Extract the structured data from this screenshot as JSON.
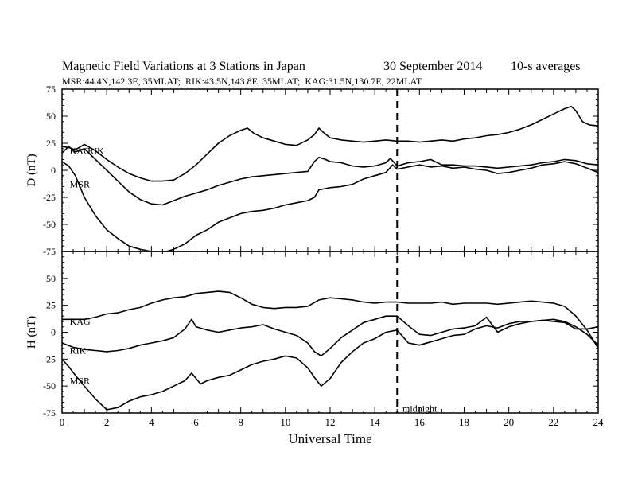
{
  "header": {
    "title": "Magnetic Field Variations at 3 Stations in Japan",
    "date": "30 September 2014",
    "averaging": "10-s averages",
    "stations_line": "MSR:44.4N,142.3E, 35MLAT;  RIK:43.5N,143.8E, 35MLAT;  KAG:31.5N,130.7E, 22MLAT"
  },
  "chart_data": [
    {
      "type": "line",
      "panel": "top",
      "ylabel": "D (nT)",
      "xlabel": "",
      "xlim": [
        0,
        24
      ],
      "ylim": [
        -75,
        75
      ],
      "yticks": [
        75,
        50,
        25,
        0,
        -25,
        -50,
        -75
      ],
      "xticks": [
        0,
        2,
        4,
        6,
        8,
        10,
        12,
        14,
        16,
        18,
        20,
        22,
        24
      ],
      "annotations": [
        {
          "text": "KAG",
          "x": 0.2,
          "y": 18
        },
        {
          "text": "RIK",
          "x": 1.0,
          "y": 18
        },
        {
          "text": "MSR",
          "x": 0.2,
          "y": -13
        }
      ],
      "series": [
        {
          "name": "KAG",
          "x": [
            0,
            0.3,
            0.6,
            1,
            1.5,
            2,
            2.5,
            3,
            3.5,
            4,
            4.5,
            5,
            5.5,
            6,
            6.5,
            7,
            7.5,
            8,
            8.3,
            8.6,
            9,
            9.5,
            10,
            10.5,
            11,
            11.3,
            11.5,
            11.7,
            12,
            12.5,
            13,
            13.5,
            14,
            14.5,
            15,
            15.5,
            16,
            16.5,
            17,
            17.5,
            18,
            18.5,
            19,
            19.5,
            20,
            20.5,
            21,
            21.5,
            22,
            22.5,
            22.8,
            23,
            23.3,
            23.6,
            24
          ],
          "y": [
            22,
            21,
            19,
            24,
            18,
            10,
            3,
            -3,
            -7,
            -10,
            -10,
            -9,
            -3,
            5,
            15,
            25,
            32,
            37,
            39,
            34,
            30,
            27,
            24,
            23,
            28,
            33,
            39,
            35,
            30,
            28,
            27,
            26,
            27,
            28,
            27,
            27,
            26,
            27,
            28,
            27,
            29,
            30,
            32,
            33,
            35,
            38,
            42,
            47,
            52,
            57,
            59,
            55,
            45,
            42,
            41
          ]
        },
        {
          "name": "RIK",
          "x": [
            0,
            0.3,
            0.6,
            1,
            1.5,
            2,
            2.5,
            3,
            3.5,
            4,
            4.5,
            5,
            5.5,
            6,
            6.5,
            7,
            7.5,
            8,
            8.5,
            9,
            9.5,
            10,
            10.5,
            11,
            11.3,
            11.5,
            11.8,
            12,
            12.5,
            13,
            13.5,
            14,
            14.5,
            14.7,
            15,
            15.5,
            16,
            16.5,
            17,
            17.5,
            18,
            18.5,
            19,
            19.5,
            20,
            20.5,
            21,
            21.5,
            22,
            22.5,
            23,
            23.5,
            24
          ],
          "y": [
            16,
            22,
            17,
            20,
            10,
            0,
            -10,
            -20,
            -27,
            -31,
            -32,
            -28,
            -24,
            -21,
            -18,
            -14,
            -11,
            -8,
            -6,
            -5,
            -4,
            -3,
            -2,
            -1,
            8,
            12,
            10,
            8,
            7,
            4,
            3,
            4,
            7,
            11,
            4,
            7,
            8,
            10,
            5,
            5,
            4,
            4,
            3,
            2,
            3,
            4,
            5,
            7,
            8,
            10,
            9,
            6,
            5
          ]
        },
        {
          "name": "MSR",
          "x": [
            0,
            0.3,
            0.6,
            1,
            1.5,
            2,
            2.5,
            3,
            3.5,
            4,
            4.5,
            5,
            5.5,
            6,
            6.5,
            7,
            7.5,
            8,
            8.5,
            9,
            9.5,
            10,
            10.5,
            11,
            11.3,
            11.5,
            12,
            12.5,
            13,
            13.5,
            14,
            14.5,
            14.8,
            15,
            15.5,
            16,
            16.5,
            17,
            17.5,
            18,
            18.5,
            19,
            19.5,
            20,
            20.5,
            21,
            21.5,
            22,
            22.5,
            23,
            23.5,
            24
          ],
          "y": [
            8,
            4,
            -5,
            -25,
            -42,
            -55,
            -63,
            -70,
            -73,
            -75,
            -76,
            -73,
            -68,
            -60,
            -55,
            -48,
            -44,
            -40,
            -38,
            -37,
            -35,
            -32,
            -30,
            -28,
            -25,
            -18,
            -16,
            -15,
            -13,
            -8,
            -5,
            -2,
            5,
            1,
            3,
            5,
            3,
            4,
            2,
            3,
            1,
            0,
            -3,
            -2,
            0,
            2,
            5,
            6,
            8,
            6,
            2,
            -2
          ]
        }
      ]
    },
    {
      "type": "line",
      "panel": "bottom",
      "ylabel": "H (nT)",
      "xlabel": "Universal Time",
      "xlim": [
        0,
        24
      ],
      "ylim": [
        -75,
        75
      ],
      "yticks": [
        50,
        25,
        0,
        -25,
        -50,
        -75
      ],
      "xticks": [
        0,
        2,
        4,
        6,
        8,
        10,
        12,
        14,
        16,
        18,
        20,
        22,
        24
      ],
      "tick_labels_x": [
        "0",
        "2",
        "4",
        "6",
        "8",
        "10",
        "12",
        "14",
        "16",
        "18",
        "20",
        "22",
        "24"
      ],
      "annotations": [
        {
          "text": "KAG",
          "x": 0.2,
          "y": 10
        },
        {
          "text": "RIK",
          "x": 0.2,
          "y": -17
        },
        {
          "text": "MSR",
          "x": 0.2,
          "y": -45
        },
        {
          "text": "midnight",
          "x": 15.1,
          "y": -71
        }
      ],
      "vertical_marker_x": 15,
      "series": [
        {
          "name": "KAG",
          "x": [
            0,
            0.5,
            1,
            1.5,
            2,
            2.5,
            3,
            3.5,
            4,
            4.5,
            5,
            5.5,
            6,
            6.5,
            7,
            7.5,
            8,
            8.5,
            9,
            9.5,
            10,
            10.5,
            11,
            11.5,
            12,
            12.5,
            13,
            13.5,
            14,
            14.5,
            15,
            15.5,
            16,
            16.5,
            17,
            17.5,
            18,
            18.5,
            19,
            19.5,
            20,
            20.5,
            21,
            21.5,
            22,
            22.5,
            23,
            23.5,
            24
          ],
          "y": [
            12,
            12,
            12,
            14,
            17,
            18,
            21,
            23,
            27,
            30,
            32,
            33,
            36,
            37,
            38,
            37,
            32,
            26,
            23,
            22,
            23,
            23,
            24,
            30,
            32,
            31,
            30,
            28,
            27,
            28,
            28,
            27,
            27,
            27,
            28,
            26,
            27,
            27,
            27,
            26,
            27,
            28,
            29,
            28,
            27,
            24,
            15,
            2,
            -15
          ]
        },
        {
          "name": "RIK",
          "x": [
            0,
            0.5,
            1,
            1.5,
            2,
            2.5,
            3,
            3.5,
            4,
            4.5,
            5,
            5.5,
            5.8,
            6,
            6.5,
            7,
            7.5,
            8,
            8.5,
            9,
            9.5,
            10,
            10.5,
            11,
            11.3,
            11.6,
            12,
            12.5,
            13,
            13.5,
            14,
            14.5,
            15,
            15.5,
            16,
            16.5,
            17,
            17.5,
            18,
            18.5,
            19,
            19.5,
            20,
            20.5,
            21,
            21.5,
            22,
            22.5,
            23,
            23.5,
            24
          ],
          "y": [
            -10,
            -14,
            -16,
            -17,
            -18,
            -17,
            -15,
            -12,
            -10,
            -8,
            -5,
            3,
            12,
            5,
            2,
            0,
            2,
            4,
            5,
            7,
            3,
            0,
            -3,
            -10,
            -18,
            -22,
            -15,
            -5,
            2,
            9,
            12,
            15,
            15,
            6,
            -2,
            -3,
            0,
            3,
            4,
            6,
            14,
            0,
            5,
            8,
            10,
            11,
            10,
            9,
            3,
            3,
            5
          ]
        },
        {
          "name": "MSR",
          "x": [
            0,
            0.3,
            0.6,
            1,
            1.5,
            2,
            2.5,
            3,
            3.5,
            4,
            4.5,
            5,
            5.5,
            5.8,
            6.2,
            6.5,
            7,
            7.5,
            8,
            8.5,
            9,
            9.5,
            10,
            10.5,
            11,
            11.3,
            11.6,
            12,
            12.5,
            13,
            13.5,
            14,
            14.5,
            15,
            15.5,
            16,
            16.5,
            17,
            17.5,
            18,
            18.5,
            19,
            19.5,
            20,
            20.5,
            21,
            21.5,
            22,
            22.5,
            23,
            23.5,
            24
          ],
          "y": [
            -25,
            -32,
            -40,
            -50,
            -62,
            -72,
            -70,
            -64,
            -60,
            -58,
            -55,
            -50,
            -45,
            -38,
            -48,
            -45,
            -42,
            -40,
            -35,
            -30,
            -27,
            -25,
            -22,
            -24,
            -33,
            -42,
            -50,
            -43,
            -28,
            -18,
            -10,
            -6,
            0,
            2,
            -10,
            -12,
            -9,
            -6,
            -3,
            -2,
            3,
            6,
            4,
            8,
            10,
            10,
            11,
            12,
            10,
            5,
            -2,
            -12
          ]
        }
      ]
    }
  ]
}
